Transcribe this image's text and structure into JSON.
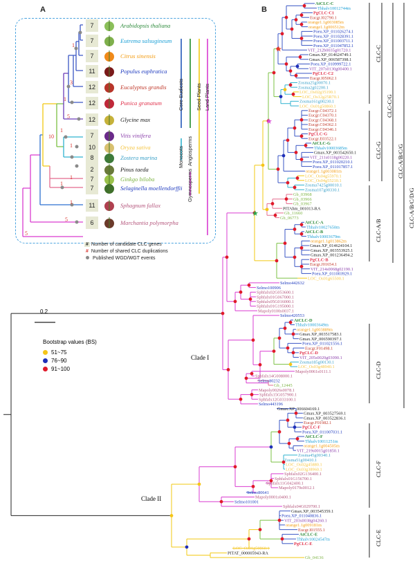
{
  "panel_a_label": "A",
  "panel_b_label": "B",
  "species": [
    {
      "name": "Arabidopsis thaliana",
      "genes": "7",
      "color": "#2e8b3c",
      "icon": "arabidopsis-icon"
    },
    {
      "name": "Eutrema salsugineum",
      "genes": "7",
      "color": "#1a9fd6",
      "icon": "eutrema-icon"
    },
    {
      "name": "Citrus sinensis",
      "genes": "7",
      "color": "#f39c12",
      "icon": "orange-fruit-icon"
    },
    {
      "name": "Populus euphratica",
      "genes": "11",
      "color": "#1f3bbf",
      "icon": "poplar-icon"
    },
    {
      "name": "Eucalyptus grandis",
      "genes": "12",
      "color": "#c0392b",
      "icon": "eucalyptus-icon"
    },
    {
      "name": "Punica granatum",
      "genes": "12",
      "color": "#e0314b",
      "icon": "pomegranate-icon"
    },
    {
      "name": "Glycine max",
      "genes": "12",
      "color": "#1a1a1a",
      "icon": "soybean-icon"
    },
    {
      "name": "Vitis vinifera",
      "genes": "7",
      "color": "#8e44ad",
      "icon": "grape-icon"
    },
    {
      "name": "Oryza sativa",
      "genes": "10",
      "color": "#f5c542",
      "icon": "rice-icon"
    },
    {
      "name": "Zostera marina",
      "genes": "8",
      "color": "#3aa0c8",
      "icon": "seagrass-icon"
    },
    {
      "name": "Pinus taeda",
      "genes": "2",
      "color": "#1a1a1a",
      "icon": "pine-icon"
    },
    {
      "name": "Ginkgo biloba",
      "genes": "7",
      "color": "#7cb342",
      "icon": "ginkgo-icon"
    },
    {
      "name": "Selaginella moellendorffii",
      "genes": "7",
      "color": "#1f3bbf",
      "icon": "selaginella-icon"
    },
    {
      "name": "Sphagnum fallax",
      "genes": "11",
      "color": "#b5577d",
      "icon": "sphagnum-icon"
    },
    {
      "name": "Marchantia polymorpha",
      "genes": "6",
      "color": "#b5577d",
      "icon": "marchantia-icon"
    }
  ],
  "dup_numbers": [
    "1",
    "3",
    "1",
    "5",
    "1",
    "1",
    "10",
    "1",
    "1",
    "1",
    "1",
    "5",
    "5"
  ],
  "groups": [
    "Core Eudicots",
    "Angiosperms",
    "Seed Plants",
    "Land Plants",
    "Monocots",
    "Gymnosperms"
  ],
  "legend_a": {
    "hash": "#",
    "candidate": "Number of candidate CLC genes",
    "duplications": "Number of shared CLC duplications",
    "wgd": "Published WGD/WGT events"
  },
  "scale_bar": "0.2",
  "bootstrap": {
    "title": "Bootstrap values (BS)",
    "items": [
      {
        "label": "51~75",
        "color": "#f5c518"
      },
      {
        "label": "76~90",
        "color": "#1f2fb8"
      },
      {
        "label": "91~100",
        "color": "#e01a2a"
      }
    ]
  },
  "clade_labels": [
    "Clade I",
    "Clade II"
  ],
  "clc_labels": [
    "CLC-C",
    "CLC-C/G",
    "CLC-G",
    "CLC-A/B",
    "CLC-D",
    "CLC-F",
    "CLC-E"
  ],
  "outer_labels": [
    "CLC-A/B/C/G",
    "CLC-A/B/C/D/G"
  ],
  "tips": [
    {
      "t": "AtCLC-C",
      "c": "#2e8b3c",
      "b": true
    },
    {
      "t": "Thhalv10012744m",
      "c": "#1a9fd6"
    },
    {
      "t": "PgCLC-C1",
      "c": "#e0314b",
      "b": true
    },
    {
      "t": "Eucgr.I02790.1",
      "c": "#c0392b"
    },
    {
      "t": "orange1.1g003085m",
      "c": "#f39c12"
    },
    {
      "t": "orange1.1g006512m",
      "c": "#f39c12"
    },
    {
      "t": "Poeu.XP_011026274.1",
      "c": "#1f3bbf"
    },
    {
      "t": "Poeu.XP_011028391.1",
      "c": "#1f3bbf"
    },
    {
      "t": "Poeu.XP_011003711.1",
      "c": "#1f3bbf"
    },
    {
      "t": "Poeu.XP_011047852.1",
      "c": "#1f3bbf"
    },
    {
      "t": "VIT_212b0035g01720.1",
      "c": "#8e44ad"
    },
    {
      "t": "Gmax.XP_014624749.1",
      "c": "#1a1a1a"
    },
    {
      "t": "Gmax.XP_006587398.1",
      "c": "#1a1a1a"
    },
    {
      "t": "Poeu.XP_010999722.1",
      "c": "#1f3bbf"
    },
    {
      "t": "VIT_207s0130g00400.1",
      "c": "#8e44ad"
    },
    {
      "t": "PgCLC-C2",
      "c": "#e0314b",
      "b": true
    },
    {
      "t": "Eucgr.I05062.1",
      "c": "#c0392b"
    },
    {
      "t": "Zosma25g00070.1",
      "c": "#3aa0c8"
    },
    {
      "t": "Zosma2g02200.1",
      "c": "#3aa0c8"
    },
    {
      "t": "LOC_Os02g35190.1",
      "c": "#f5c542"
    },
    {
      "t": "LOC_Os12g25R70.1",
      "c": "#f5c542"
    },
    {
      "t": "Zosma161g00230.1",
      "c": "#3aa0c8"
    },
    {
      "t": "LOC_Os01g50860.1",
      "c": "#f5c542"
    },
    {
      "t": "Eucgr.C04372.1",
      "c": "#c0392b"
    },
    {
      "t": "Eucgr.C04370.1",
      "c": "#c0392b"
    },
    {
      "t": "Eucgr.C04368.1",
      "c": "#c0392b"
    },
    {
      "t": "Eucgr.C04362.1",
      "c": "#c0392b"
    },
    {
      "t": "Eucgr.C04346.1",
      "c": "#c0392b"
    },
    {
      "t": "PgCLC-G",
      "c": "#e0314b",
      "b": true
    },
    {
      "t": "Eucgr.E03522.1",
      "c": "#c0392b"
    },
    {
      "t": "AtCLC-G",
      "c": "#2e8b3c",
      "b": true
    },
    {
      "t": "Thhalv10003685m",
      "c": "#1a9fd6"
    },
    {
      "t": "Gmax.XP_003542650.1",
      "c": "#1a1a1a"
    },
    {
      "t": "VIT_211s0118g00220.1",
      "c": "#8e44ad"
    },
    {
      "t": "Poeu.XP_011020210.1",
      "c": "#1f3bbf"
    },
    {
      "t": "Poeu.XP_011017857.1",
      "c": "#1f3bbf"
    },
    {
      "t": "orange1.1g003081m",
      "c": "#f39c12"
    },
    {
      "t": "LOC_Os04g55970.1",
      "c": "#f5c542"
    },
    {
      "t": "LOC_Os04g55210.1",
      "c": "#f5c542"
    },
    {
      "t": "Zosma7425g00010.1",
      "c": "#3aa0c8"
    },
    {
      "t": "Zosma107g00330.1",
      "c": "#3aa0c8"
    },
    {
      "t": "Gb_03968",
      "c": "#7cb342"
    },
    {
      "t": "Gb_03966",
      "c": "#7cb342"
    },
    {
      "t": "Gb_03967",
      "c": "#7cb342"
    },
    {
      "t": "PITAhm_001013-RA",
      "c": "#1a1a1a"
    },
    {
      "t": "Gb_11660",
      "c": "#7cb342"
    },
    {
      "t": "Gb_06773",
      "c": "#7cb342"
    },
    {
      "t": "AtCLC-A",
      "c": "#2e8b3c",
      "b": true
    },
    {
      "t": "Thhalv10027650m",
      "c": "#1a9fd6"
    },
    {
      "t": "AtCLC-B",
      "c": "#2e8b3c",
      "b": true
    },
    {
      "t": "Thhalv10003679m",
      "c": "#1a9fd6"
    },
    {
      "t": "orange1.1g013862m",
      "c": "#f39c12"
    },
    {
      "t": "Gmax.XP_014624104.1",
      "c": "#1a1a1a"
    },
    {
      "t": "Gmax.XP_003553925.1",
      "c": "#1a1a1a"
    },
    {
      "t": "Gmax.XP_001236494.2",
      "c": "#1a1a1a"
    },
    {
      "t": "PgCLC-B",
      "c": "#e0314b",
      "b": true
    },
    {
      "t": "Eucgr.J01654.1",
      "c": "#c0392b"
    },
    {
      "t": "VIT_214s0068g02190.1",
      "c": "#8e44ad"
    },
    {
      "t": "Poeu.XP_011003929.1",
      "c": "#1f3bbf"
    },
    {
      "t": "LOC_Os01g65500.1",
      "c": "#f5c542"
    },
    {
      "t": "Selmo442632",
      "c": "#1f3bbf"
    },
    {
      "t": "Selmo100906",
      "c": "#1f3bbf"
    },
    {
      "t": "Sphfalx02G053600.1",
      "c": "#b5577d"
    },
    {
      "t": "Sphfalx01G067000.1",
      "c": "#b5577d"
    },
    {
      "t": "Sphfalx05G016000.1",
      "c": "#b5577d"
    },
    {
      "t": "Sphfalx01G195000.1",
      "c": "#b5577d"
    },
    {
      "t": "Mapoly0100s0037.1",
      "c": "#b5577d"
    },
    {
      "t": "Selmo420553",
      "c": "#1f3bbf"
    },
    {
      "t": "AtCLC-D",
      "c": "#2e8b3c",
      "b": true
    },
    {
      "t": "Thhalv10003649m",
      "c": "#1a9fd6"
    },
    {
      "t": "orange1.1g003889m",
      "c": "#f39c12"
    },
    {
      "t": "Gmax.XP_003517583.1",
      "c": "#1a1a1a"
    },
    {
      "t": "Gmax.XP_006590397.1",
      "c": "#1a1a1a"
    },
    {
      "t": "Poeu.XP_011021556.1",
      "c": "#1f3bbf"
    },
    {
      "t": "Eucgr.F01498.1",
      "c": "#c0392b"
    },
    {
      "t": "PgCLC-D",
      "c": "#e0314b",
      "b": true
    },
    {
      "t": "VIT_205s0020g03090.1",
      "c": "#8e44ad"
    },
    {
      "t": "Zosma185g00130.1",
      "c": "#3aa0c8"
    },
    {
      "t": "LOC_Os03g48940.1",
      "c": "#f5c542"
    },
    {
      "t": "Mapoly0061s0111.1",
      "c": "#b5577d"
    },
    {
      "t": "Sphfalx14G008000.1",
      "c": "#b5577d"
    },
    {
      "t": "Selmo80232",
      "c": "#1f3bbf"
    },
    {
      "t": "Gb_12445",
      "c": "#7cb342"
    },
    {
      "t": "Mapoly0026s0078.1",
      "c": "#b5577d"
    },
    {
      "t": "Sphfalx15G057900.1",
      "c": "#b5577d"
    },
    {
      "t": "Sphfalx12G033100.1",
      "c": "#b5577d"
    },
    {
      "t": "Selmo443196",
      "c": "#1f3bbf"
    },
    {
      "t": "Gmax.XP_006604169.1",
      "c": "#1a1a1a"
    },
    {
      "t": "Gmax.XP_003527569.1",
      "c": "#1a1a1a"
    },
    {
      "t": "Gmax.XP_003522836.1",
      "c": "#1a1a1a"
    },
    {
      "t": "Eucgr.F01982.1",
      "c": "#c0392b"
    },
    {
      "t": "PgCLC-F",
      "c": "#e0314b",
      "b": true
    },
    {
      "t": "Poeu.XP_011007031.1",
      "c": "#1f3bbf"
    },
    {
      "t": "AtCLC-F",
      "c": "#2e8b3c",
      "b": true
    },
    {
      "t": "Thhalv10011251m",
      "c": "#1a9fd6"
    },
    {
      "t": "orange1.1g004505m",
      "c": "#f39c12"
    },
    {
      "t": "VIT_219s0015g01850.1",
      "c": "#8e44ad"
    },
    {
      "t": "Zosma45g00340.1",
      "c": "#3aa0c8"
    },
    {
      "t": "Zosma51g00410.1",
      "c": "#3aa0c8"
    },
    {
      "t": "LOC_Os02g45880.1",
      "c": "#f5c542"
    },
    {
      "t": "LOC_Os03g38960.1",
      "c": "#f5c542"
    },
    {
      "t": "Sphfalx02G136400.1",
      "c": "#b5577d"
    },
    {
      "t": "Sphfalx01G156700.1",
      "c": "#b5577d"
    },
    {
      "t": "Sphfalx11G042400.1",
      "c": "#b5577d"
    },
    {
      "t": "Mapoly0179s0012.1",
      "c": "#b5577d"
    },
    {
      "t": "Selmo80641",
      "c": "#1f3bbf"
    },
    {
      "t": "Mapoly0001s0400.1",
      "c": "#b5577d"
    },
    {
      "t": "Selmo101001",
      "c": "#1f3bbf"
    },
    {
      "t": "Sphfalx04G029700.1",
      "c": "#b5577d"
    },
    {
      "t": "Gmax.XP_003545359.1",
      "c": "#1a1a1a"
    },
    {
      "t": "Poeu.XP_011040836.1",
      "c": "#1f3bbf"
    },
    {
      "t": "VIT_203s0038g04260.1",
      "c": "#8e44ad"
    },
    {
      "t": "orange1.1g009181m",
      "c": "#f39c12"
    },
    {
      "t": "Eucgr.I01555.1",
      "c": "#c0392b"
    },
    {
      "t": "AtCLC-E",
      "c": "#2e8b3c",
      "b": true
    },
    {
      "t": "Thhalv10024547m",
      "c": "#1a9fd6"
    },
    {
      "t": "PgCLC-E",
      "c": "#e0314b",
      "b": true
    },
    {
      "t": "LOC_Os01g50860.1",
      "c": "#f5c542"
    },
    {
      "t": "PITAT_000005943-RA",
      "c": "#1a1a1a"
    },
    {
      "t": "Gb_04136",
      "c": "#7cb342"
    }
  ]
}
